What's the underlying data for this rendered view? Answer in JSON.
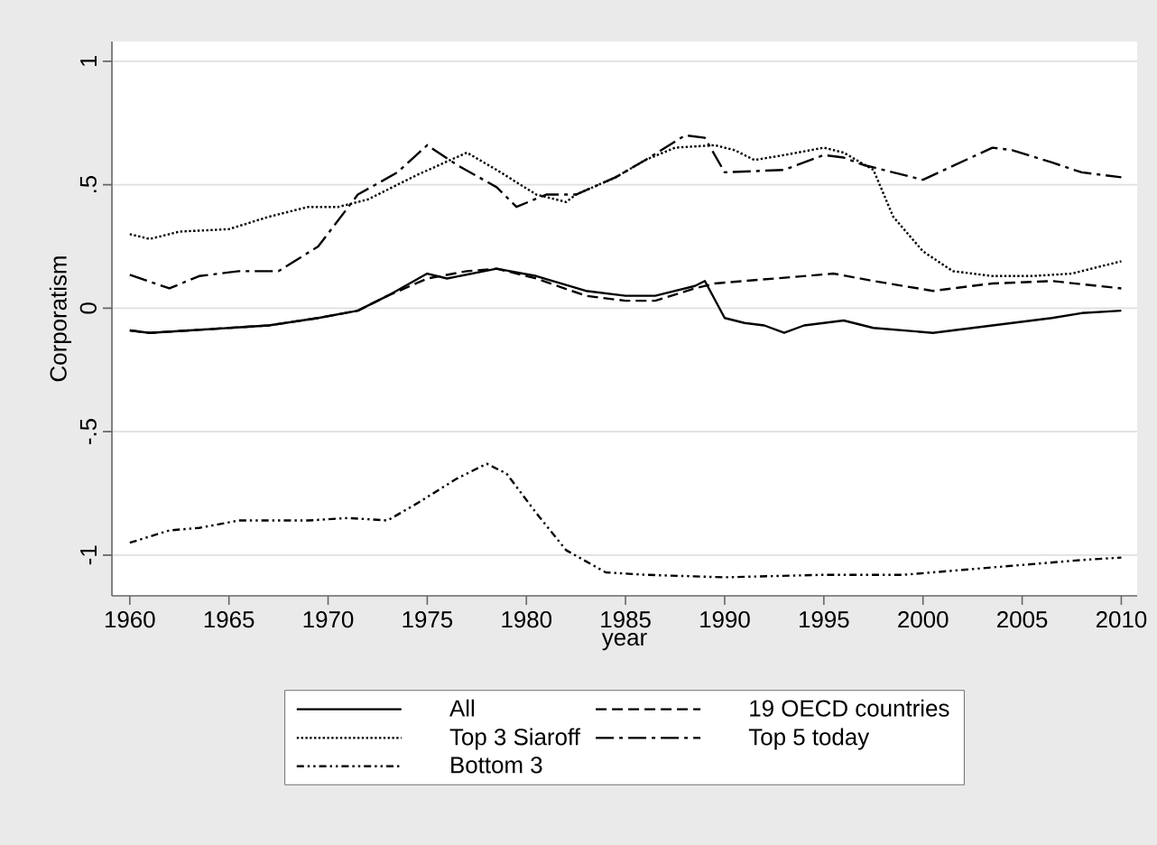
{
  "chart_data": {
    "type": "line",
    "xlabel": "year",
    "ylabel": "Corporatism",
    "xlim": [
      1959.1,
      2010.8
    ],
    "ylim": [
      -1.165,
      1.08
    ],
    "xticks": [
      1960,
      1965,
      1970,
      1975,
      1980,
      1985,
      1990,
      1995,
      2000,
      2005,
      2010
    ],
    "yticks": [
      {
        "value": -1,
        "label": "-1"
      },
      {
        "value": -0.5,
        "label": "-.5"
      },
      {
        "value": 0,
        "label": "0"
      },
      {
        "value": 0.5,
        "label": ".5"
      },
      {
        "value": 1,
        "label": "1"
      }
    ],
    "grid": "y",
    "legend": "bottom",
    "marker": "none",
    "series": [
      {
        "name": "All",
        "color": "#000000",
        "line_style": "solid",
        "x": [
          1960,
          1961,
          1963,
          1967,
          1969.5,
          1971.5,
          1973,
          1975,
          1976,
          1978.5,
          1980.5,
          1983,
          1985,
          1986.5,
          1988.5,
          1989,
          1990,
          1991,
          1992,
          1993,
          1994,
          1996,
          1997.5,
          2000.5,
          2003.5,
          2006.5,
          2008,
          2010
        ],
        "values": [
          -0.09,
          -0.1,
          -0.09,
          -0.07,
          -0.04,
          -0.01,
          0.05,
          0.14,
          0.12,
          0.16,
          0.13,
          0.07,
          0.05,
          0.05,
          0.09,
          0.11,
          -0.04,
          -0.06,
          -0.07,
          -0.1,
          -0.07,
          -0.05,
          -0.08,
          -0.1,
          -0.07,
          -0.04,
          -0.02,
          -0.01
        ]
      },
      {
        "name": "19 OECD countries",
        "color": "#000000",
        "line_style": "dashed",
        "x": [
          1960,
          1961,
          1963,
          1967,
          1969.5,
          1971.5,
          1973,
          1975,
          1977,
          1978.5,
          1980.5,
          1983,
          1985,
          1986.5,
          1988.5,
          1989.5,
          1992.5,
          1995.5,
          1997.5,
          2000.5,
          2003.5,
          2006.5,
          2010
        ],
        "values": [
          -0.09,
          -0.1,
          -0.09,
          -0.07,
          -0.04,
          -0.01,
          0.05,
          0.12,
          0.15,
          0.16,
          0.12,
          0.05,
          0.03,
          0.03,
          0.08,
          0.1,
          0.12,
          0.14,
          0.11,
          0.07,
          0.1,
          0.11,
          0.08
        ]
      },
      {
        "name": "Top 3 Siaroff",
        "color": "#000000",
        "line_style": "dotted",
        "x": [
          1960,
          1961,
          1962.5,
          1965,
          1967,
          1969,
          1970.5,
          1972,
          1974.5,
          1977,
          1978.5,
          1980.5,
          1982,
          1982.5,
          1984.5,
          1986,
          1987.5,
          1989.5,
          1990.5,
          1991.5,
          1993,
          1995,
          1996,
          1997.5,
          1998.5,
          2000,
          2001.5,
          2003.5,
          2005.5,
          2007.5,
          2008.5,
          2010
        ],
        "values": [
          0.3,
          0.28,
          0.31,
          0.32,
          0.37,
          0.41,
          0.41,
          0.44,
          0.54,
          0.63,
          0.56,
          0.46,
          0.43,
          0.46,
          0.53,
          0.6,
          0.65,
          0.66,
          0.64,
          0.6,
          0.62,
          0.65,
          0.63,
          0.56,
          0.37,
          0.23,
          0.15,
          0.13,
          0.13,
          0.14,
          0.16,
          0.19
        ]
      },
      {
        "name": "Top 5 today",
        "color": "#000000",
        "line_style": "dashdot",
        "x": [
          1960,
          1962,
          1963.5,
          1965.5,
          1967.5,
          1969.5,
          1971.5,
          1973.5,
          1975,
          1976.5,
          1978.5,
          1979.5,
          1981,
          1982.5,
          1984.5,
          1986,
          1988,
          1989,
          1990,
          1993,
          1995,
          1996,
          1997,
          2000,
          2003.5,
          2004.5,
          2006.5,
          2008,
          2010
        ],
        "values": [
          0.135,
          0.08,
          0.13,
          0.15,
          0.15,
          0.25,
          0.46,
          0.55,
          0.66,
          0.58,
          0.49,
          0.41,
          0.46,
          0.46,
          0.53,
          0.6,
          0.7,
          0.69,
          0.55,
          0.56,
          0.62,
          0.61,
          0.58,
          0.52,
          0.65,
          0.64,
          0.59,
          0.55,
          0.53
        ]
      },
      {
        "name": "Bottom 3",
        "color": "#000000",
        "line_style": "dashdotdot",
        "x": [
          1960,
          1962,
          1963.5,
          1965.5,
          1967,
          1969,
          1971,
          1973,
          1974.5,
          1976.5,
          1978,
          1979,
          1980.5,
          1982,
          1984,
          1986,
          1990,
          1995,
          1999,
          2002,
          2005,
          2008,
          2010
        ],
        "values": [
          -0.95,
          -0.9,
          -0.89,
          -0.86,
          -0.86,
          -0.86,
          -0.85,
          -0.86,
          -0.79,
          -0.69,
          -0.63,
          -0.67,
          -0.83,
          -0.98,
          -1.07,
          -1.08,
          -1.09,
          -1.08,
          -1.08,
          -1.06,
          -1.04,
          -1.02,
          -1.01
        ]
      }
    ]
  }
}
